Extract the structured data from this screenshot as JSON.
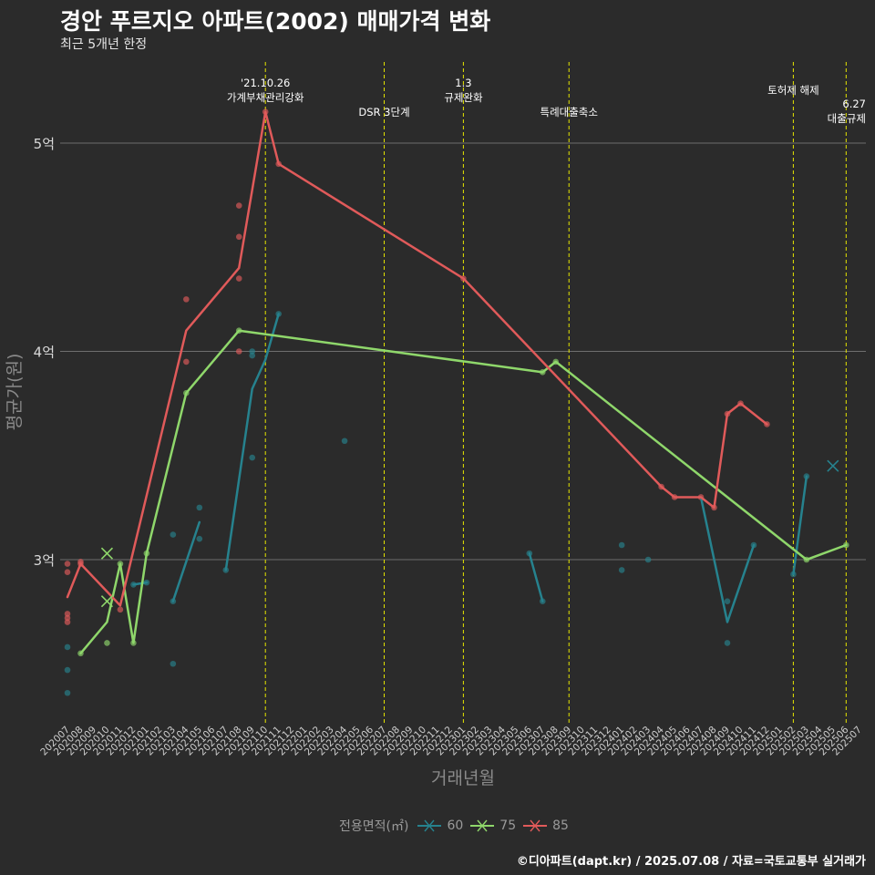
{
  "title": "경안 푸르지오 아파트(2002) 매매가격 변화",
  "subtitle": "최근 5개년 한정",
  "caption": "©디아파트(dapt.kr) / 2025.07.08 / 자료=국토교통부 실거래가",
  "legend": {
    "title": "전용면적(㎡)",
    "items": [
      {
        "label": "60",
        "color": "#26828e"
      },
      {
        "label": "75",
        "color": "#8fd76b"
      },
      {
        "label": "85",
        "color": "#e05a5a"
      }
    ]
  },
  "chart_data": {
    "type": "line",
    "xlabel": "거래년월",
    "ylabel": "평균가(원)",
    "ylim": [
      2.2,
      5.35
    ],
    "yticks": [
      {
        "value": 3,
        "label": "3억"
      },
      {
        "value": 4,
        "label": "4억"
      },
      {
        "value": 5,
        "label": "5억"
      }
    ],
    "grid": true,
    "legend_position": "bottom",
    "categories": [
      "202007",
      "202008",
      "202009",
      "202010",
      "202011",
      "202012",
      "202101",
      "202102",
      "202103",
      "202104",
      "202105",
      "202106",
      "202107",
      "202108",
      "202109",
      "202110",
      "202111",
      "202112",
      "202201",
      "202202",
      "202203",
      "202204",
      "202205",
      "202206",
      "202207",
      "202208",
      "202209",
      "202210",
      "202211",
      "202212",
      "202301",
      "202302",
      "202303",
      "202304",
      "202305",
      "202306",
      "202307",
      "202308",
      "202309",
      "202310",
      "202311",
      "202312",
      "202401",
      "202402",
      "202403",
      "202404",
      "202405",
      "202406",
      "202407",
      "202408",
      "202409",
      "202410",
      "202411",
      "202412",
      "202501",
      "202502",
      "202503",
      "202504",
      "202505",
      "202506",
      "202507"
    ],
    "series": [
      {
        "name": "60",
        "color": "#26828e",
        "lines": [
          [
            [
              "202012",
              2.88
            ],
            [
              "202101",
              2.89
            ]
          ],
          [
            [
              "202103",
              2.8
            ],
            [
              "202105",
              3.18
            ]
          ],
          [
            [
              "202107",
              2.95
            ],
            [
              "202109",
              3.82
            ],
            [
              "202110",
              3.96
            ],
            [
              "202111",
              4.18
            ]
          ],
          [
            [
              "202306",
              3.03
            ],
            [
              "202307",
              2.8
            ]
          ],
          [
            [
              "202407",
              3.3
            ],
            [
              "202409",
              2.7
            ],
            [
              "202411",
              3.07
            ]
          ],
          [
            [
              "202502",
              2.93
            ],
            [
              "202503",
              3.4
            ]
          ]
        ],
        "points": [
          [
            "202007",
            2.58
          ],
          [
            "202007",
            2.47
          ],
          [
            "202007",
            2.36
          ],
          [
            "202012",
            2.88
          ],
          [
            "202101",
            2.89
          ],
          [
            "202103",
            3.12
          ],
          [
            "202103",
            2.8
          ],
          [
            "202103",
            2.5
          ],
          [
            "202105",
            3.25
          ],
          [
            "202105",
            3.1
          ],
          [
            "202107",
            2.95
          ],
          [
            "202109",
            4.0
          ],
          [
            "202109",
            3.98
          ],
          [
            "202109",
            3.49
          ],
          [
            "202111",
            4.18
          ],
          [
            "202204",
            3.57
          ],
          [
            "202306",
            3.03
          ],
          [
            "202307",
            2.8
          ],
          [
            "202401",
            3.07
          ],
          [
            "202401",
            2.95
          ],
          [
            "202403",
            3.0
          ],
          [
            "202409",
            2.8
          ],
          [
            "202409",
            2.6
          ],
          [
            "202411",
            3.07
          ],
          [
            "202502",
            2.93
          ],
          [
            "202503",
            3.4
          ]
        ],
        "crosses": [
          [
            "202505",
            3.45
          ]
        ]
      },
      {
        "name": "75",
        "color": "#8fd76b",
        "lines": [
          [
            [
              "202008",
              2.55
            ],
            [
              "202010",
              2.7
            ],
            [
              "202011",
              2.98
            ],
            [
              "202012",
              2.6
            ],
            [
              "202101",
              3.03
            ],
            [
              "202104",
              3.8
            ],
            [
              "202108",
              4.1
            ],
            [
              "202307",
              3.9
            ],
            [
              "202308",
              3.95
            ],
            [
              "202503",
              3.0
            ],
            [
              "202506",
              3.07
            ]
          ]
        ],
        "points": [
          [
            "202008",
            2.55
          ],
          [
            "202010",
            2.6
          ],
          [
            "202011",
            2.98
          ],
          [
            "202012",
            2.6
          ],
          [
            "202101",
            3.03
          ],
          [
            "202104",
            3.8
          ],
          [
            "202108",
            4.1
          ],
          [
            "202307",
            3.9
          ],
          [
            "202308",
            3.95
          ],
          [
            "202503",
            3.0
          ],
          [
            "202506",
            3.07
          ]
        ],
        "crosses": [
          [
            "202010",
            3.03
          ],
          [
            "202010",
            2.8
          ]
        ]
      },
      {
        "name": "85",
        "color": "#e05a5a",
        "lines": [
          [
            [
              "202007",
              2.82
            ],
            [
              "202008",
              2.98
            ],
            [
              "202011",
              2.78
            ],
            [
              "202104",
              4.1
            ],
            [
              "202108",
              4.4
            ],
            [
              "202110",
              5.15
            ],
            [
              "202111",
              4.9
            ],
            [
              "202301",
              4.35
            ],
            [
              "202404",
              3.35
            ],
            [
              "202405",
              3.3
            ],
            [
              "202407",
              3.3
            ],
            [
              "202408",
              3.25
            ],
            [
              "202409",
              3.7
            ],
            [
              "202410",
              3.75
            ],
            [
              "202412",
              3.65
            ]
          ]
        ],
        "points": [
          [
            "202007",
            2.98
          ],
          [
            "202007",
            2.94
          ],
          [
            "202007",
            2.74
          ],
          [
            "202007",
            2.72
          ],
          [
            "202007",
            2.7
          ],
          [
            "202008",
            2.99
          ],
          [
            "202008",
            2.98
          ],
          [
            "202011",
            2.76
          ],
          [
            "202104",
            4.25
          ],
          [
            "202104",
            3.95
          ],
          [
            "202108",
            4.7
          ],
          [
            "202108",
            4.55
          ],
          [
            "202108",
            4.35
          ],
          [
            "202108",
            4.0
          ],
          [
            "202110",
            5.15
          ],
          [
            "202111",
            4.9
          ],
          [
            "202301",
            4.35
          ],
          [
            "202404",
            3.35
          ],
          [
            "202405",
            3.3
          ],
          [
            "202407",
            3.3
          ],
          [
            "202408",
            3.25
          ],
          [
            "202409",
            3.7
          ],
          [
            "202410",
            3.75
          ],
          [
            "202412",
            3.65
          ]
        ],
        "crosses": []
      }
    ],
    "annotations": [
      {
        "x": "202110",
        "lines": [
          "'21.10.26",
          "가계부채관리강화"
        ],
        "level": "top"
      },
      {
        "x": "202207",
        "lines": [
          "DSR 3단계"
        ],
        "level": "low"
      },
      {
        "x": "202301",
        "lines": [
          "1.3",
          "규제완화"
        ],
        "level": "top"
      },
      {
        "x": "202309",
        "lines": [
          "특례대출축소"
        ],
        "level": "low"
      },
      {
        "x": "202502",
        "lines": [
          "토허제 해제"
        ],
        "level": "mid"
      },
      {
        "x": "202506",
        "lines": [
          "6.27",
          "대출규제"
        ],
        "level": "low2"
      }
    ]
  }
}
